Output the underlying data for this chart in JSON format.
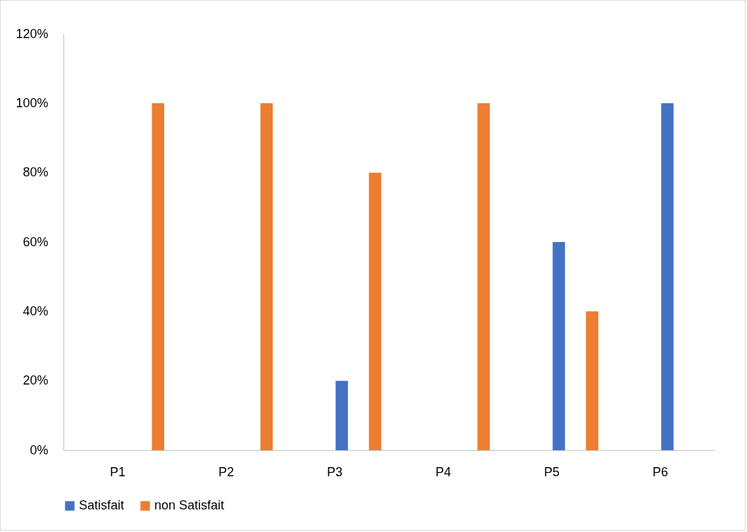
{
  "chart_data": {
    "type": "bar",
    "categories": [
      "P1",
      "P2",
      "P3",
      "P4",
      "P5",
      "P6"
    ],
    "series": [
      {
        "name": "Satisfait",
        "color": "#4472c4",
        "values": [
          0,
          0,
          20,
          0,
          60,
          100
        ]
      },
      {
        "name": "non Satisfait",
        "color": "#ed7d31",
        "values": [
          100,
          100,
          80,
          100,
          40,
          0
        ]
      }
    ],
    "ylim": [
      0,
      120
    ],
    "yticks": [
      {
        "value": 0,
        "label": "0%"
      },
      {
        "value": 20,
        "label": "20%"
      },
      {
        "value": 40,
        "label": "40%"
      },
      {
        "value": 60,
        "label": "60%"
      },
      {
        "value": 80,
        "label": "80%"
      },
      {
        "value": 100,
        "label": "100%"
      },
      {
        "value": 120,
        "label": "120%"
      }
    ],
    "legend": "bottom"
  }
}
